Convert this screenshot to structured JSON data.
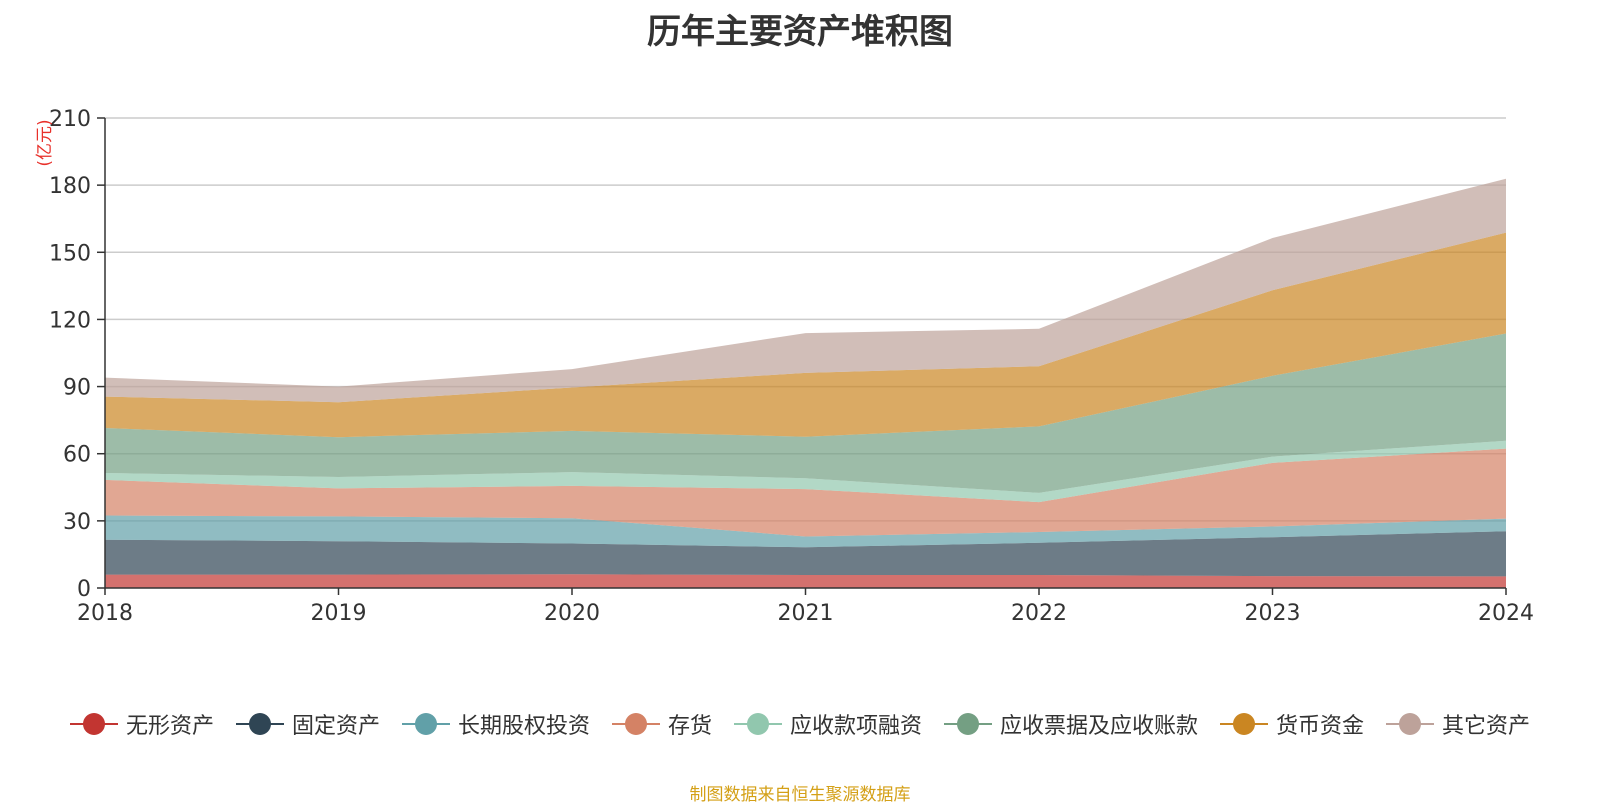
{
  "chart_data": {
    "type": "area",
    "stacked": true,
    "title": "历年主要资产堆积图",
    "unit_label": "(亿元)",
    "x": [
      "2018",
      "2019",
      "2020",
      "2021",
      "2022",
      "2023",
      "2024"
    ],
    "ylim": [
      0,
      210
    ],
    "yticks": [
      0,
      30,
      60,
      90,
      120,
      150,
      180,
      210
    ],
    "grid": true,
    "legend_position": "bottom",
    "series": [
      {
        "name": "无形资产",
        "color": "#c23531",
        "values": [
          6,
          6,
          6.1,
          5.8,
          5.8,
          5.3,
          5.2
        ]
      },
      {
        "name": "固定资产",
        "color": "#2f4554",
        "values": [
          15.6,
          14.9,
          13.8,
          12.4,
          14.4,
          17.4,
          20.2
        ]
      },
      {
        "name": "长期股权投资",
        "color": "#61a0a8",
        "values": [
          10.8,
          11.1,
          11.3,
          4.8,
          4.8,
          4.8,
          5.6
        ]
      },
      {
        "name": "存货",
        "color": "#d48265",
        "values": [
          15.9,
          12.5,
          14.4,
          21.2,
          13.4,
          28.4,
          31.3
        ]
      },
      {
        "name": "应收款项融资",
        "color": "#91c7ae",
        "values": [
          3.1,
          5.1,
          6.2,
          4.8,
          4.1,
          2.8,
          3.5
        ]
      },
      {
        "name": "应收票据及应收账款",
        "color": "#749f83",
        "values": [
          20.1,
          17.8,
          18.4,
          18.6,
          29.7,
          36.1,
          47.9
        ]
      },
      {
        "name": "货币资金",
        "color": "#ca8622",
        "values": [
          14.0,
          15.6,
          19.4,
          28.5,
          26.9,
          38.2,
          45.1
        ]
      },
      {
        "name": "其它资产",
        "color": "#bda29a",
        "values": [
          8.5,
          7.0,
          8.2,
          17.8,
          16.7,
          23.4,
          24.1
        ]
      }
    ]
  },
  "footer": {
    "source": "制图数据来自恒生聚源数据库"
  }
}
